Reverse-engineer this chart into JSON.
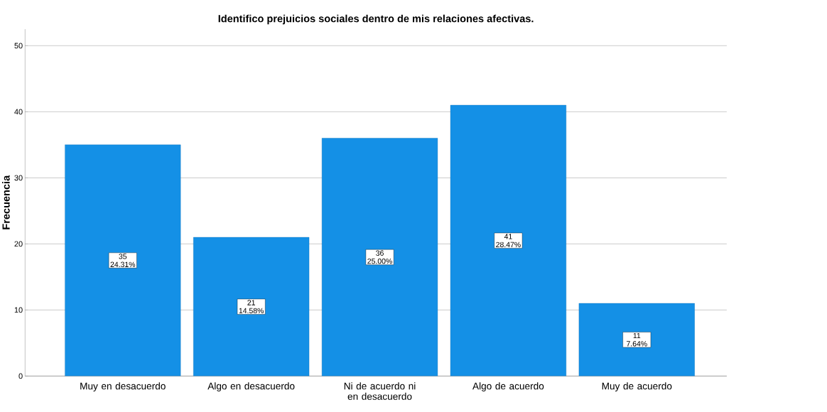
{
  "chart_data": {
    "type": "bar",
    "title": "Identifico prejuicios sociales dentro de mis relaciones afectivas.",
    "ylabel": "Frecuencia",
    "categories": [
      "Muy en desacuerdo",
      "Algo en desacuerdo",
      "Ni de acuerdo ni en desacuerdo",
      "Algo de acuerdo",
      "Muy de acuerdo"
    ],
    "values": [
      35,
      21,
      36,
      41,
      11
    ],
    "value_labels": [
      "35 24.31%",
      "21 14.58%",
      "36 25.00%",
      "41 28.47%",
      "11 7.64%"
    ],
    "color": "#1490e6",
    "ylim": [
      0,
      52.5
    ],
    "yticks": [
      0,
      10,
      20,
      30,
      40,
      50
    ],
    "grid": "y"
  }
}
